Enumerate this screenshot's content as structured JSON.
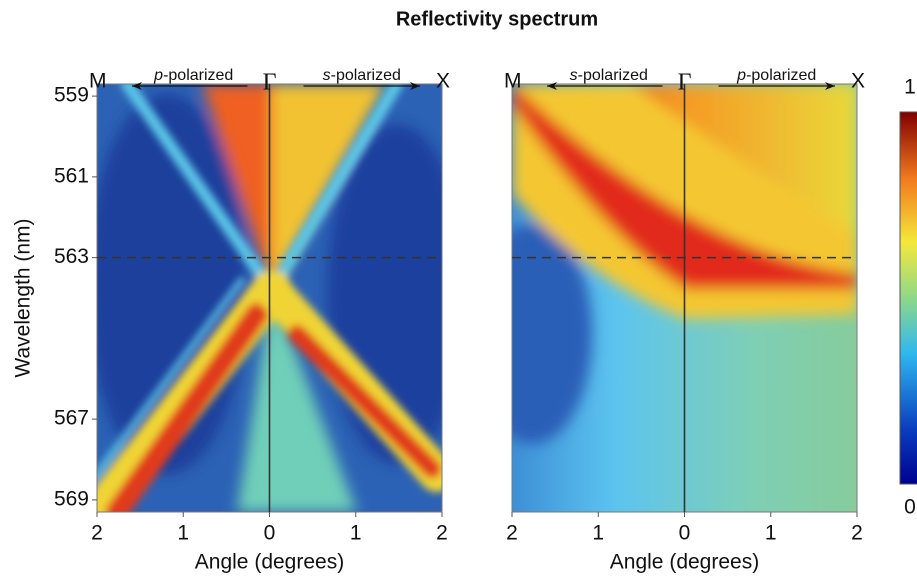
{
  "title": "Reflectivity spectrum",
  "chart_data": [
    {
      "type": "heatmap",
      "xlabel": "Angle (degrees)",
      "ylabel": "Wavelength (nm)",
      "xlim": [
        -2,
        2
      ],
      "xticks": [
        {
          "value": -2,
          "label": "2"
        },
        {
          "value": -1,
          "label": "1"
        },
        0,
        1,
        2
      ],
      "ylim": [
        558.7,
        569.3
      ],
      "yticks": [
        559,
        561,
        563,
        567,
        569
      ],
      "y_inverted": true,
      "vline": 0,
      "hline": 563,
      "left_end": "M",
      "center": "Γ",
      "right_end": "X",
      "left_arrow": {
        "italic": "p",
        "text": "-polarized"
      },
      "right_arrow": {
        "italic": "s",
        "text": "-polarized"
      }
    },
    {
      "type": "heatmap",
      "xlabel": "Angle (degrees)",
      "xlim": [
        -2,
        2
      ],
      "xticks": [
        {
          "value": -2,
          "label": "2"
        },
        {
          "value": -1,
          "label": "1"
        },
        0,
        1,
        2
      ],
      "ylim": [
        558.7,
        569.3
      ],
      "y_inverted": true,
      "vline": 0,
      "hline": 563,
      "left_end": "M",
      "center": "Γ",
      "right_end": "X",
      "left_arrow": {
        "italic": "s",
        "text": "-polarized"
      },
      "right_arrow": {
        "italic": "p",
        "text": "-polarized"
      }
    }
  ],
  "colorbar": {
    "lim": [
      0,
      1
    ],
    "ticks": [
      0,
      1
    ]
  }
}
